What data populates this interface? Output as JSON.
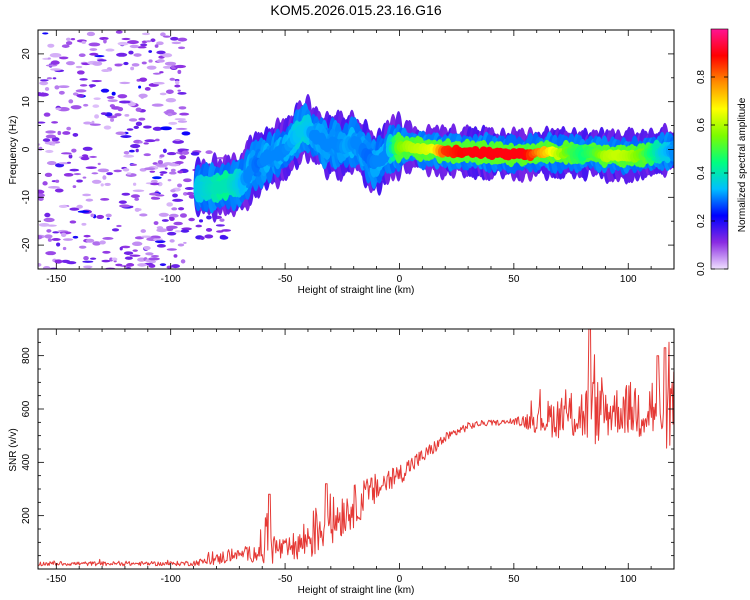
{
  "figure": {
    "title": "KOM5.2026.015.23.16.G16"
  },
  "chart_data": [
    {
      "type": "heatmap",
      "name": "frequency-spectrogram",
      "xlabel": "Height of straight line (km)",
      "ylabel": "Frequency (Hz)",
      "xlim": [
        -158,
        120
      ],
      "ylim": [
        -25,
        25
      ],
      "xticks": [
        -150,
        -100,
        -50,
        0,
        50,
        100
      ],
      "yticks": [
        -20,
        -10,
        0,
        10,
        20
      ],
      "colorbar": {
        "label": "Normalized spectral amplitude",
        "range": [
          0,
          1
        ],
        "ticks": [
          "0.0",
          "0.2",
          "0.4",
          "0.6",
          "0.8"
        ],
        "tick_values": [
          0.0,
          0.2,
          0.4,
          0.6,
          0.8
        ],
        "colormap": [
          "#f0e0ff",
          "#8a2be2",
          "#0000ff",
          "#00bfff",
          "#00ff7f",
          "#7cfc00",
          "#ffff00",
          "#ff8c00",
          "#ff0000",
          "#ff1493"
        ]
      },
      "ridge": {
        "x": [
          -88,
          -80,
          -75,
          -70,
          -67,
          -64,
          -62,
          -60,
          -57,
          -54,
          -50,
          -47,
          -44,
          -41,
          -38,
          -35,
          -32,
          -29,
          -26,
          -23,
          -20,
          -17,
          -14,
          -11,
          -8,
          -5,
          -2,
          0,
          5,
          10,
          15,
          20,
          30,
          40,
          50,
          55,
          60,
          65,
          70,
          75,
          80,
          85,
          90,
          95,
          100,
          105,
          110,
          115,
          120
        ],
        "freq": [
          -8,
          -8,
          -7.5,
          -7.2,
          -6,
          -3,
          -3.2,
          -2.5,
          -1.5,
          -1,
          0,
          1.5,
          3.5,
          4.5,
          3,
          2.5,
          0.5,
          1.5,
          0.5,
          0.8,
          1.5,
          0.5,
          -1.5,
          -3,
          -2,
          -0.5,
          0.5,
          0.5,
          0.5,
          0,
          0,
          -0.5,
          -0.5,
          -0.8,
          -1,
          -1,
          -0.8,
          -0.5,
          -1,
          -0.5,
          -1,
          -0.5,
          -1.2,
          -1.2,
          -1.4,
          -1.2,
          -0.8,
          -0.5,
          -0.3
        ],
        "amp": [
          0.35,
          0.4,
          0.4,
          0.35,
          0.3,
          0.3,
          0.28,
          0.3,
          0.3,
          0.3,
          0.3,
          0.32,
          0.35,
          0.35,
          0.3,
          0.3,
          0.3,
          0.3,
          0.3,
          0.32,
          0.3,
          0.3,
          0.28,
          0.3,
          0.3,
          0.3,
          0.45,
          0.55,
          0.6,
          0.62,
          0.65,
          0.85,
          0.9,
          0.9,
          0.9,
          0.9,
          0.8,
          0.7,
          0.6,
          0.5,
          0.45,
          0.5,
          0.6,
          0.62,
          0.6,
          0.55,
          0.45,
          0.35,
          0.3
        ]
      },
      "noise_region_xmax": -93
    },
    {
      "type": "line",
      "name": "snr-trace",
      "xlabel": "Height of straight line (km)",
      "ylabel": "SNR (v/v)",
      "xlim": [
        -158,
        120
      ],
      "ylim": [
        0,
        900
      ],
      "xticks": [
        -150,
        -100,
        -50,
        0,
        50,
        100
      ],
      "yticks": [
        200,
        400,
        600,
        800
      ],
      "color": "#e53935",
      "envelope": {
        "x": [
          -158,
          -100,
          -90,
          -80,
          -75,
          -70,
          -62,
          -58,
          -55,
          -50,
          -45,
          -40,
          -35,
          -30,
          -25,
          -20,
          -15,
          -10,
          -5,
          0,
          5,
          10,
          15,
          20,
          25,
          30,
          35,
          40,
          45,
          50,
          55,
          60,
          65,
          70,
          75,
          80,
          85,
          90,
          95,
          100,
          105,
          110,
          115,
          120
        ],
        "mean": [
          20,
          20,
          22,
          35,
          50,
          55,
          60,
          120,
          80,
          70,
          85,
          115,
          150,
          175,
          210,
          235,
          270,
          300,
          330,
          355,
          390,
          420,
          455,
          490,
          515,
          535,
          545,
          548,
          550,
          552,
          555,
          560,
          565,
          570,
          575,
          580,
          590,
          590,
          595,
          600,
          600,
          605,
          600,
          595
        ],
        "amp": [
          8,
          8,
          10,
          20,
          30,
          15,
          40,
          130,
          60,
          40,
          60,
          90,
          100,
          90,
          90,
          80,
          70,
          60,
          50,
          40,
          35,
          30,
          25,
          20,
          18,
          15,
          12,
          10,
          10,
          10,
          30,
          50,
          70,
          80,
          90,
          110,
          130,
          110,
          90,
          100,
          120,
          140,
          150,
          160
        ]
      },
      "peaks": [
        {
          "x": 83,
          "y": 905
        },
        {
          "x": 116,
          "y": 830
        },
        {
          "x": 113,
          "y": 800
        },
        {
          "x": -57,
          "y": 280
        },
        {
          "x": -32,
          "y": 320
        }
      ]
    }
  ]
}
